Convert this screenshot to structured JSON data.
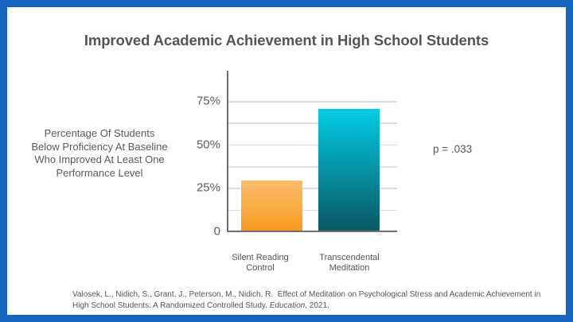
{
  "slide": {
    "border_color": "#1666c0",
    "background": "#ffffff"
  },
  "chart_data": {
    "type": "bar",
    "title": "Improved Academic Achievement in High School Students",
    "ylabel": "Percentage Of Students Below Proficiency At Baseline Who Improved At Least One Performance Level",
    "ylabel_lines": [
      "Percentage Of Students",
      "Below Proficiency At Baseline",
      "Who Improved At Least One",
      "Performance Level"
    ],
    "xlabel": "",
    "categories": [
      "Silent Reading Control",
      "Transcendental Meditation"
    ],
    "category_lines": [
      [
        "Silent Reading",
        "Control"
      ],
      [
        "Transcendental",
        "Meditation"
      ]
    ],
    "values": [
      29,
      70
    ],
    "unit": "%",
    "ylim": [
      0,
      87.5
    ],
    "yticks": [
      {
        "value": 0,
        "label": "0"
      },
      {
        "value": 25,
        "label": "25%"
      },
      {
        "value": 50,
        "label": "50%"
      },
      {
        "value": 75,
        "label": "75%"
      }
    ],
    "gridlines": [
      12.5,
      25,
      37.5,
      50,
      62.5,
      75
    ],
    "grid": true,
    "legend": null,
    "bar_colors": [
      {
        "top": "#fbbe6c",
        "bottom": "#f7991f"
      },
      {
        "top": "#00cce4",
        "bottom": "#0a5864"
      }
    ],
    "annotations": [
      "p = .033"
    ]
  },
  "annotation": {
    "p_value": "p = .033"
  },
  "citation": {
    "authors": "Valosek, L., Nidich, S., Grant, J., Peterson, M., Nidich, R.",
    "title_text": "Effect of Meditation on Psychological Stress and Academic Achievement in High School Students: A Randomized Controlled Study.",
    "journal": "Education",
    "year": ", 2021."
  }
}
